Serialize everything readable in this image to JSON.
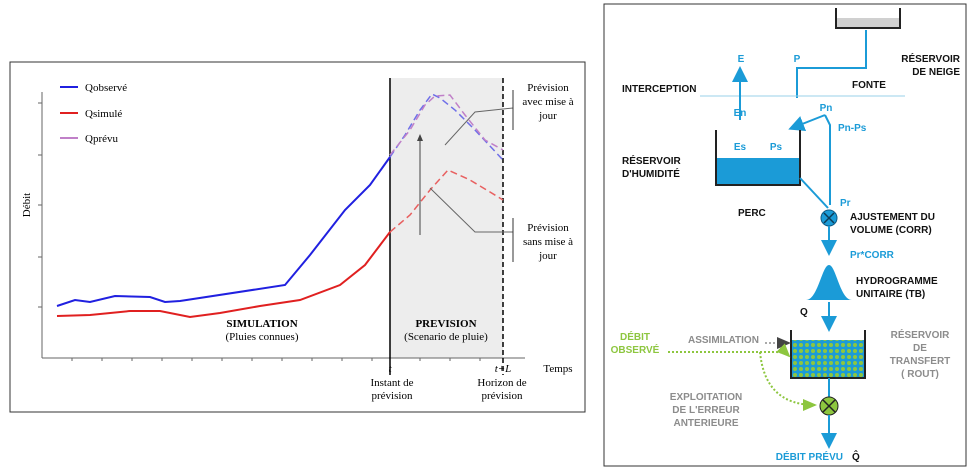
{
  "hydrograph": {
    "legend": [
      "Qobservé",
      "Qsimulé",
      "Qprévu"
    ],
    "y_label": "Débit",
    "x_label": "Temps",
    "phases": [
      {
        "title": "SIMULATION",
        "subtitle": "(Pluies connues)"
      },
      {
        "title": "PREVISION",
        "subtitle": "(Scenario de pluie)"
      }
    ],
    "time_marks": [
      {
        "symbol": "t",
        "caption": [
          "Instant de",
          "prévision"
        ]
      },
      {
        "symbol": "t+L",
        "caption": [
          "Horizon de",
          "prévision"
        ]
      }
    ],
    "annotations": [
      [
        "Prévision",
        "avec mise à",
        "jour"
      ],
      [
        "Prévision",
        "sans mise à",
        "jour"
      ]
    ]
  },
  "model": {
    "evaporation": "E",
    "precipitation": "P",
    "interception": "INTERCEPTION",
    "melt": "FONTE",
    "snow_reservoir": [
      "RÉSERVOIR",
      "DE NEIGE"
    ],
    "net_rain": "Pn",
    "net_evap": "En",
    "soil_evap": "Es",
    "infiltration": "Ps",
    "excess": "Pn-Ps",
    "soil_reservoir": [
      "RÉSERVOIR",
      "D'HUMIDITÉ"
    ],
    "percolation": "PERC",
    "effective_rain": "Pr",
    "volume_adjust": [
      "AJUSTEMENT DU",
      "VOLUME (CORR)"
    ],
    "corrected_rain": "Pr*CORR",
    "unit_hydrograph": [
      "HYDROGRAMME",
      "UNITAIRE (TB)"
    ],
    "flow": "Q",
    "observed_flow": [
      "DÉBIT",
      "OBSERVÉ"
    ],
    "assimilation": "ASSIMILATION",
    "transfer_reservoir": [
      "RÉSERVOIR",
      "DE",
      "TRANSFERT",
      "( ROUT)"
    ],
    "error_use": [
      "EXPLOITATION",
      "DE L'ERREUR",
      "ANTERIEURE"
    ],
    "forecast_flow": "DÉBIT PRÉVU",
    "forecast_symbol": "Q̂"
  }
}
